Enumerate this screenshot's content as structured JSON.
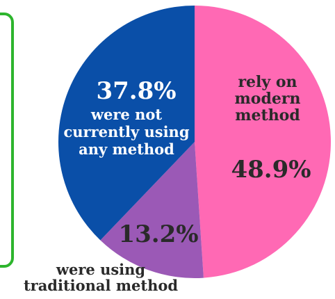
{
  "chart_data": {
    "type": "pie",
    "slices": [
      {
        "value": 48.9,
        "percent_label": "48.9%",
        "label_lines": [
          "rely on",
          "modern",
          "method"
        ],
        "color": "#ff69b4"
      },
      {
        "value": 13.2,
        "percent_label": "13.2%",
        "label_lines": [
          "were using",
          "traditional method"
        ],
        "color": "#9b59b6"
      },
      {
        "value": 37.8,
        "percent_label": "37.8%",
        "label_lines": [
          "were not",
          "currently using",
          "any method"
        ],
        "color": "#0a4fa8"
      }
    ],
    "start": "top",
    "direction": "clockwise",
    "legend": "none"
  },
  "colors": {
    "frame": "#2db52d",
    "dark_text": "#2a2a2a",
    "light_text": "#ffffff"
  }
}
